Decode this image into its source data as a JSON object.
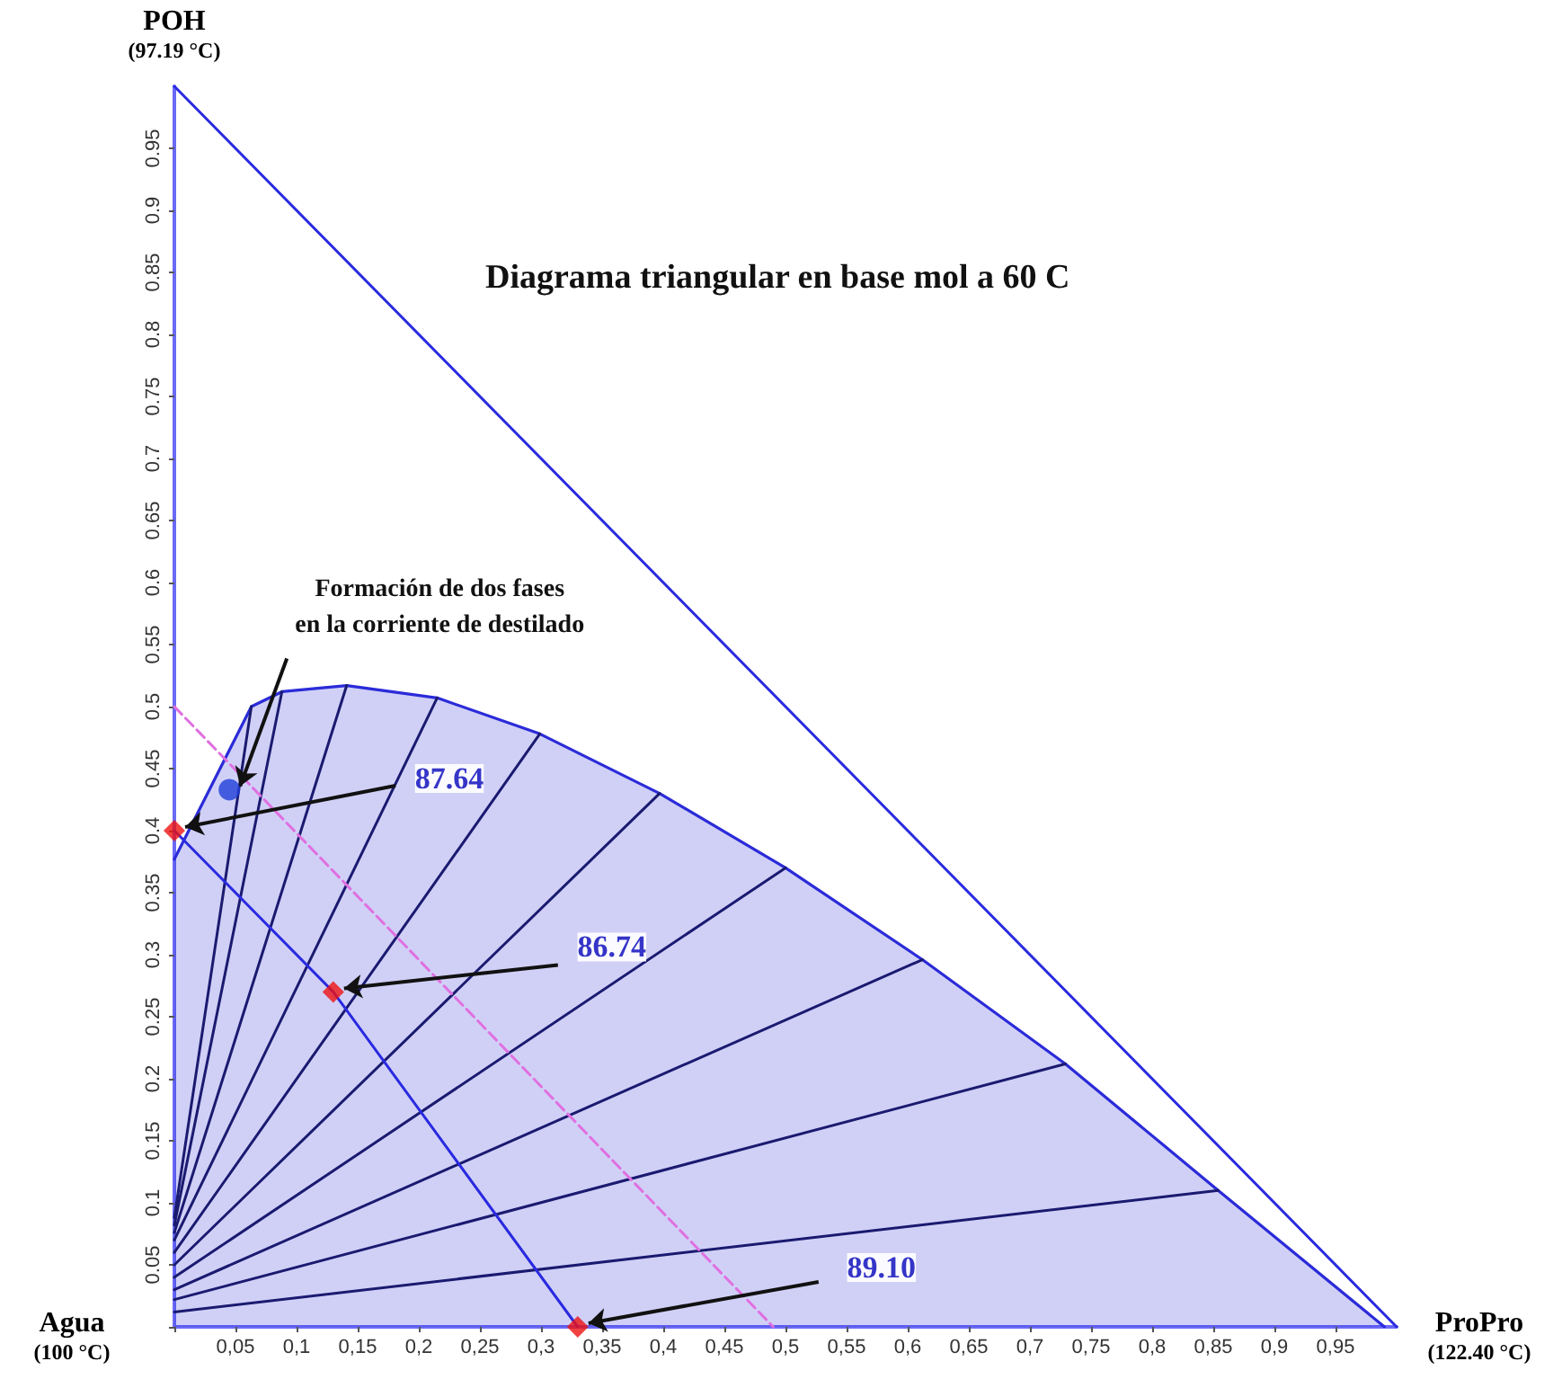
{
  "chart_data": {
    "type": "line",
    "title": "Diagrama triangular en base mol a 60 C",
    "xlim": [
      0,
      1
    ],
    "ylim": [
      0,
      1
    ],
    "xticks": [
      {
        "value": 0,
        "label": null
      },
      {
        "value": 0.05,
        "label": "0,05"
      },
      {
        "value": 0.1,
        "label": "0,1"
      },
      {
        "value": 0.15,
        "label": "0,15"
      },
      {
        "value": 0.2,
        "label": "0,2"
      },
      {
        "value": 0.25,
        "label": "0,25"
      },
      {
        "value": 0.3,
        "label": "0,3"
      },
      {
        "value": 0.35,
        "label": "0,35"
      },
      {
        "value": 0.4,
        "label": "0,4"
      },
      {
        "value": 0.45,
        "label": "0,45"
      },
      {
        "value": 0.5,
        "label": "0,5"
      },
      {
        "value": 0.55,
        "label": "0,55"
      },
      {
        "value": 0.6,
        "label": "0,6"
      },
      {
        "value": 0.65,
        "label": "0,65"
      },
      {
        "value": 0.7,
        "label": "0,7"
      },
      {
        "value": 0.75,
        "label": "0,75"
      },
      {
        "value": 0.8,
        "label": "0,8"
      },
      {
        "value": 0.85,
        "label": "0,85"
      },
      {
        "value": 0.9,
        "label": "0,9"
      },
      {
        "value": 0.95,
        "label": "0,95"
      }
    ],
    "yticks": [
      {
        "value": 0,
        "label": null
      },
      0.05,
      0.1,
      0.15,
      0.2,
      0.25,
      0.3,
      0.35,
      0.4,
      0.45,
      0.5,
      0.55,
      0.6,
      0.65,
      0.7,
      0.75,
      0.8,
      0.85,
      0.9,
      0.95
    ],
    "marker": "none",
    "line_style": "solid",
    "series": [
      {
        "color": "#2a2ae0",
        "x": [
          0,
          1
        ],
        "values": [
          1,
          0
        ]
      },
      {
        "type": "area",
        "color": "#2b2bd9",
        "x": [
          0,
          0.063,
          0.088,
          0.141,
          0.215,
          0.299,
          0.397,
          0.5,
          0.612,
          0.729,
          0.854,
          0.99
        ],
        "values": [
          0.377,
          0.5,
          0.512,
          0.517,
          0.507,
          0.478,
          0.43,
          0.37,
          0.296,
          0.212,
          0.11,
          0
        ]
      },
      {
        "color": "#1a1a70",
        "x": [
          0,
          0.854
        ],
        "values": [
          0.012,
          0.11
        ]
      },
      {
        "type": "line",
        "color": "#1a1a70",
        "x": [
          0,
          0.729
        ],
        "values": [
          0.022,
          0.212
        ]
      },
      {
        "type": "line",
        "color": "#1a1a70",
        "x": [
          0,
          0.612
        ],
        "values": [
          0.03,
          0.296
        ]
      },
      {
        "type": "line",
        "color": "#1a1a70",
        "x": [
          0,
          0.5
        ],
        "values": [
          0.04,
          0.37
        ]
      },
      {
        "type": "line",
        "color": "#1a1a70",
        "x": [
          0,
          0.397
        ],
        "values": [
          0.05,
          0.43
        ]
      },
      {
        "type": "line",
        "color": "#1a1a70",
        "x": [
          0,
          0.299
        ],
        "values": [
          0.06,
          0.478
        ]
      },
      {
        "type": "line",
        "color": "#1a1a70",
        "x": [
          0,
          0.215
        ],
        "values": [
          0.07,
          0.507
        ]
      },
      {
        "type": "line",
        "color": "#1a1a70",
        "x": [
          0,
          0.141
        ],
        "values": [
          0.076,
          0.517
        ]
      },
      {
        "type": "line",
        "color": "#1a1a70",
        "x": [
          0,
          0.088
        ],
        "values": [
          0.082,
          0.512
        ]
      },
      {
        "type": "line",
        "color": "#1a1a70",
        "x": [
          0,
          0.063
        ],
        "values": [
          0.088,
          0.5
        ]
      },
      {
        "type": "line",
        "color": "#e070e0",
        "line_style": "dashed",
        "x": [
          0,
          0.49
        ],
        "values": [
          0.5,
          0
        ]
      },
      {
        "type": "line",
        "color": "#2a2ae0",
        "x": [
          0,
          0.13,
          0.33
        ],
        "values": [
          0.4,
          0.27,
          0
        ]
      },
      {
        "type": "scatter",
        "color": "#ee1111",
        "marker": "diamond",
        "x": [
          0,
          0.13,
          0.33
        ],
        "values": [
          0.4,
          0.27,
          0
        ]
      },
      {
        "type": "scatter",
        "color": "#1f3fd8",
        "marker": "circle",
        "x": [
          0.045
        ],
        "values": [
          0.433
        ]
      }
    ],
    "annotations": [
      {
        "text": "POH\n(97.19 °C)",
        "x": 0,
        "y": 1
      },
      {
        "text": "Agua\n(100 °C)",
        "x": 0,
        "y": 0
      },
      {
        "text": "ProPro\n(122.40 °C)",
        "x": 1,
        "y": 0
      },
      {
        "text": "87.64",
        "x": 0,
        "y": 0.4
      },
      {
        "text": "86.74",
        "x": 0.13,
        "y": 0.27
      },
      {
        "text": "89.10",
        "x": 0.33,
        "y": 0
      },
      {
        "text": "Formación de dos fases\nen la corriente de destilado",
        "x": 0.045,
        "y": 0.433
      }
    ]
  }
}
